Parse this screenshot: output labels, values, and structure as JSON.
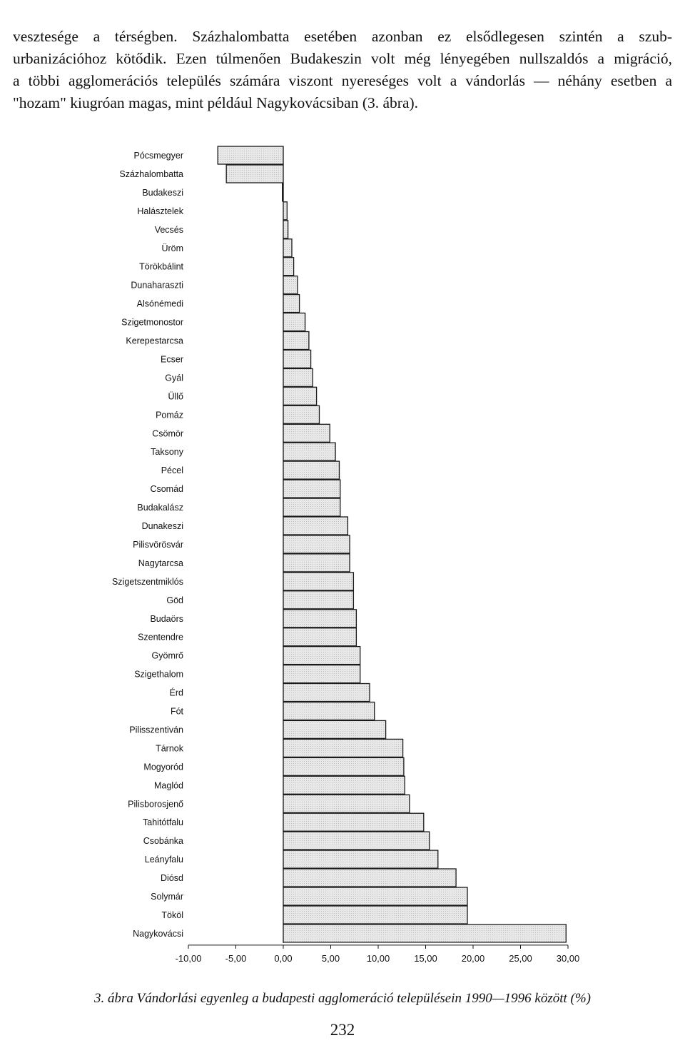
{
  "paragraph": {
    "lines": [
      "vesztesége a térségben. Százhalombatta esetében azonban ez elsődlegesen szintén a szub-",
      "urbanizációhoz kötődik. Ezen túlmenően Budakeszin volt még lényegében nullszaldós a migráció,",
      "a többi agglomerációs település számára viszont nyereséges volt a vándorlás — néhány esetben a",
      "\"hozam\" kiugróan magas, mint például Nagykovácsiban (3. ábra)."
    ]
  },
  "chart_data": {
    "type": "bar",
    "orientation": "horizontal",
    "categories": [
      "Pócsmegyer",
      "Százhalombatta",
      "Budakeszi",
      "Halásztelek",
      "Vecsés",
      "Üröm",
      "Törökbálint",
      "Dunaharaszti",
      "Alsónémedi",
      "Szigetmonostor",
      "Kerepestarcsa",
      "Ecser",
      "Gyál",
      "Üllő",
      "Pomáz",
      "Csömör",
      "Taksony",
      "Pécel",
      "Csomád",
      "Budakalász",
      "Dunakeszi",
      "Pilisvörösvár",
      "Nagytarcsa",
      "Szigetszentmiklós",
      "Göd",
      "Budaörs",
      "Szentendre",
      "Gyömrő",
      "Szigethalom",
      "Érd",
      "Fót",
      "Pilisszentiván",
      "Tárnok",
      "Mogyoród",
      "Maglód",
      "Pilisborosjenő",
      "Tahitótfalu",
      "Csobánka",
      "Leányfalu",
      "Diósd",
      "Solymár",
      "Tököl",
      "Nagykovácsi"
    ],
    "values": [
      -6.9,
      -6.0,
      -0.1,
      0.4,
      0.5,
      0.9,
      1.1,
      1.5,
      1.7,
      2.3,
      2.7,
      2.9,
      3.1,
      3.5,
      3.8,
      4.9,
      5.5,
      5.9,
      6.0,
      6.0,
      6.8,
      7.0,
      7.0,
      7.4,
      7.4,
      7.7,
      7.7,
      8.1,
      8.1,
      9.1,
      9.6,
      10.8,
      12.6,
      12.7,
      12.8,
      13.3,
      14.8,
      15.4,
      16.3,
      18.2,
      19.4,
      19.4,
      29.8
    ],
    "xlim": [
      -10,
      30
    ],
    "xticks": [
      -10,
      -5,
      0,
      5,
      10,
      15,
      20,
      25,
      30
    ],
    "xtick_labels": [
      "-10,00",
      "-5,00",
      "0,00",
      "5,00",
      "10,00",
      "15,00",
      "20,00",
      "25,00",
      "30,00"
    ],
    "title": "",
    "xlabel": "",
    "ylabel": "",
    "grid": false,
    "bar_fill": "#e3e3e3",
    "bar_stroke": "#1a1a1a"
  },
  "caption": {
    "number": "3. ábra",
    "text": "Vándorlási egyenleg a budapesti agglomeráció településein 1990—1996 között (%)"
  },
  "page_number": "232"
}
